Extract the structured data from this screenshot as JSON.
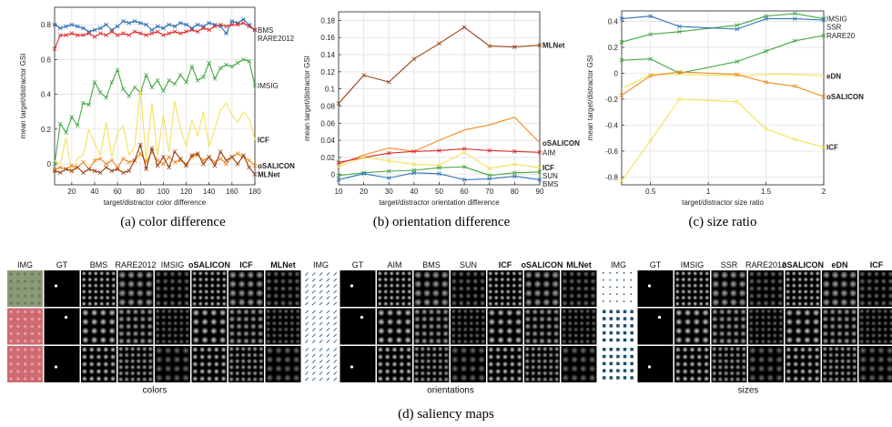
{
  "colors": {
    "BMS": "#2f74b8",
    "RARE2012": "#dd2a2a",
    "IMSIG": "#44a945",
    "ICF": "#f5e15a",
    "oSALICON": "#f08a1c",
    "MLNet": "#9c3f12",
    "AIM": "#dd2a2a",
    "SUN": "#44a945",
    "SSR": "#2f74b8",
    "RARE20": "#44a945",
    "eDN": "#f5e15a",
    "axis": "#222222",
    "grid": "#dddddd"
  },
  "chart_data": [
    {
      "type": "line",
      "caption": "(a)  color difference",
      "xlabel": "target/distractor color difference",
      "ylabel": "mean target/distractor GSI",
      "xlim": [
        5,
        180
      ],
      "ylim": [
        -0.12,
        0.9
      ],
      "grid": true,
      "xticks": [
        20,
        40,
        60,
        80,
        100,
        120,
        140,
        160,
        180
      ],
      "yticks": [
        0,
        0.2,
        0.4,
        0.6,
        0.8
      ],
      "yticklabels": [
        "0",
        "0.2",
        "0.4",
        "0.6",
        "0.8"
      ],
      "x": [
        5,
        10,
        15,
        20,
        25,
        30,
        35,
        40,
        45,
        50,
        55,
        60,
        65,
        70,
        75,
        80,
        85,
        90,
        95,
        100,
        105,
        110,
        115,
        120,
        125,
        130,
        135,
        140,
        145,
        150,
        155,
        160,
        165,
        170,
        175,
        180
      ],
      "series": [
        {
          "name": "BMS",
          "label": "BMS",
          "bold": false,
          "marker": "*",
          "values": [
            0.8,
            0.78,
            0.79,
            0.8,
            0.79,
            0.78,
            0.76,
            0.77,
            0.78,
            0.8,
            0.77,
            0.79,
            0.82,
            0.81,
            0.82,
            0.81,
            0.8,
            0.77,
            0.79,
            0.78,
            0.8,
            0.79,
            0.81,
            0.8,
            0.78,
            0.8,
            0.79,
            0.81,
            0.8,
            0.79,
            0.75,
            0.82,
            0.81,
            0.83,
            0.8,
            0.77
          ]
        },
        {
          "name": "RARE2012",
          "label": "RARE2012",
          "bold": false,
          "marker": "x",
          "values": [
            0.66,
            0.74,
            0.74,
            0.75,
            0.74,
            0.74,
            0.75,
            0.73,
            0.75,
            0.74,
            0.76,
            0.74,
            0.75,
            0.74,
            0.76,
            0.75,
            0.74,
            0.75,
            0.76,
            0.74,
            0.75,
            0.76,
            0.75,
            0.76,
            0.77,
            0.76,
            0.78,
            0.77,
            0.79,
            0.8,
            0.79,
            0.8,
            0.8,
            0.81,
            0.79,
            0.77
          ]
        },
        {
          "name": "IMSIG",
          "label": "IMSIG",
          "bold": false,
          "marker": "x",
          "values": [
            0.0,
            0.23,
            0.18,
            0.27,
            0.22,
            0.35,
            0.34,
            0.47,
            0.41,
            0.38,
            0.47,
            0.54,
            0.43,
            0.39,
            0.44,
            0.41,
            0.51,
            0.44,
            0.48,
            0.42,
            0.48,
            0.46,
            0.51,
            0.47,
            0.56,
            0.48,
            0.5,
            0.58,
            0.49,
            0.55,
            0.57,
            0.56,
            0.58,
            0.6,
            0.59,
            0.45
          ]
        },
        {
          "name": "ICF",
          "label": "ICF",
          "bold": true,
          "marker": "none",
          "values": [
            0.02,
            0.0,
            0.15,
            -0.06,
            0.03,
            0.05,
            0.2,
            0.12,
            0.05,
            0.24,
            0.04,
            0.18,
            0.22,
            0.05,
            0.1,
            0.43,
            0.02,
            0.35,
            0.05,
            0.28,
            0.07,
            0.36,
            0.2,
            0.1,
            0.25,
            0.16,
            0.3,
            0.1,
            0.2,
            0.31,
            0.35,
            0.28,
            0.24,
            0.3,
            0.26,
            0.14
          ]
        },
        {
          "name": "oSALICON",
          "label": "oSALICON",
          "bold": true,
          "marker": "x",
          "values": [
            -0.03,
            -0.02,
            -0.03,
            -0.01,
            -0.02,
            0.01,
            -0.03,
            0.02,
            0.03,
            0.0,
            0.02,
            -0.02,
            0.03,
            0.01,
            0.02,
            0.06,
            0.01,
            0.07,
            0.02,
            0.0,
            0.04,
            0.01,
            0.02,
            0.0,
            0.04,
            0.05,
            0.02,
            0.04,
            0.01,
            0.03,
            0.0,
            0.04,
            0.06,
            0.04,
            0.02,
            -0.01
          ]
        },
        {
          "name": "MLNet",
          "label": "MLNet",
          "bold": true,
          "marker": "x",
          "values": [
            -0.04,
            -0.05,
            -0.03,
            -0.04,
            -0.02,
            -0.05,
            -0.03,
            -0.04,
            -0.05,
            -0.02,
            -0.04,
            -0.03,
            -0.05,
            -0.04,
            0.02,
            0.11,
            -0.03,
            0.09,
            -0.01,
            0.04,
            -0.02,
            0.07,
            0.03,
            -0.01,
            0.05,
            0.06,
            0.0,
            0.04,
            -0.01,
            0.07,
            0.02,
            0.04,
            0.0,
            0.05,
            -0.02,
            -0.06
          ]
        }
      ]
    },
    {
      "type": "line",
      "caption": "(b)  orientation difference",
      "xlabel": "target/distractor orientation difference",
      "ylabel": "mean target/distractor GSI",
      "xlim": [
        10,
        90
      ],
      "ylim": [
        -0.012,
        0.19
      ],
      "grid": true,
      "xticks": [
        10,
        20,
        30,
        40,
        50,
        60,
        70,
        80,
        90
      ],
      "yticks": [
        0,
        0.02,
        0.04,
        0.06,
        0.08,
        0.1,
        0.12,
        0.14,
        0.16,
        0.18
      ],
      "yticklabels": [
        "0",
        "0.02",
        "0.04",
        "0.06",
        "0.08",
        "0.1",
        "0.12",
        "0.14",
        "0.16",
        "0.18"
      ],
      "x": [
        10,
        20,
        30,
        40,
        50,
        60,
        70,
        80,
        90
      ],
      "series": [
        {
          "name": "MLNet",
          "label": "MLNet",
          "bold": true,
          "marker": "x",
          "values": [
            0.083,
            0.116,
            0.108,
            0.135,
            0.153,
            0.172,
            0.15,
            0.149,
            0.151
          ]
        },
        {
          "name": "oSALICON",
          "label": "oSALICON",
          "bold": true,
          "marker": "none",
          "values": [
            0.012,
            0.023,
            0.031,
            0.027,
            0.04,
            0.052,
            0.058,
            0.067,
            0.037
          ]
        },
        {
          "name": "AIM",
          "label": "AIM",
          "bold": false,
          "marker": "x",
          "values": [
            0.014,
            0.02,
            0.025,
            0.027,
            0.028,
            0.03,
            0.028,
            0.027,
            0.026
          ]
        },
        {
          "name": "ICF",
          "label": "ICF",
          "bold": true,
          "marker": "x",
          "values": [
            0.009,
            0.02,
            0.016,
            0.012,
            0.011,
            0.026,
            0.007,
            0.012,
            0.008
          ]
        },
        {
          "name": "SUN",
          "label": "SUN",
          "bold": false,
          "marker": "x",
          "values": [
            -0.001,
            0.002,
            0.004,
            0.005,
            0.008,
            0.009,
            -0.001,
            0.002,
            0.003
          ]
        },
        {
          "name": "BMS",
          "label": "BMS",
          "bold": false,
          "marker": "x",
          "values": [
            -0.006,
            0.001,
            -0.004,
            0.002,
            0.001,
            -0.006,
            -0.005,
            -0.002,
            -0.006
          ]
        }
      ]
    },
    {
      "type": "line",
      "caption": "(c)  size ratio",
      "xlabel": "target/distractor size ratio",
      "ylabel": "mean target/distractor GSI",
      "xlim": [
        0.25,
        2
      ],
      "ylim": [
        -0.86,
        0.48
      ],
      "grid": true,
      "xticks": [
        0.5,
        1,
        1.5,
        2
      ],
      "xticklabels": [
        "0.5",
        "1",
        "1.5",
        "2"
      ],
      "yticks": [
        -0.8,
        -0.6,
        -0.4,
        -0.2,
        0,
        0.2,
        0.4
      ],
      "yticklabels": [
        "-0.8",
        "-0.6",
        "-0.4",
        "-0.2",
        "0",
        "0.2",
        "0.4"
      ],
      "x": [
        0.25,
        0.5,
        0.75,
        1.25,
        1.5,
        1.75,
        2
      ],
      "series": [
        {
          "name": "IMSIG",
          "label": "IMSIG",
          "bold": false,
          "marker": "x",
          "values": [
            0.24,
            0.3,
            0.32,
            0.37,
            0.44,
            0.46,
            0.42
          ]
        },
        {
          "name": "SSR",
          "label": "SSR",
          "bold": false,
          "marker": "x",
          "values": [
            0.42,
            0.44,
            0.36,
            0.34,
            0.42,
            0.42,
            0.41
          ]
        },
        {
          "name": "RARE20",
          "label": "RARE20",
          "bold": false,
          "marker": "x",
          "values": [
            0.1,
            0.11,
            0.0,
            0.09,
            0.17,
            0.25,
            0.29
          ]
        },
        {
          "name": "eDN",
          "label": "eDN",
          "bold": true,
          "marker": "none",
          "values": [
            -0.12,
            -0.01,
            -0.01,
            -0.02,
            -0.01,
            -0.01,
            -0.02
          ]
        },
        {
          "name": "oSALICON",
          "label": "oSALICON",
          "bold": true,
          "marker": "x",
          "values": [
            -0.17,
            -0.02,
            0.01,
            -0.01,
            -0.07,
            -0.1,
            -0.18
          ]
        },
        {
          "name": "ICF",
          "label": "ICF",
          "bold": true,
          "marker": "x",
          "values": [
            -0.83,
            -0.52,
            -0.2,
            -0.22,
            -0.43,
            -0.51,
            -0.57
          ]
        }
      ]
    }
  ],
  "saliency_maps": {
    "caption": "(d)  saliency maps",
    "groups": [
      {
        "label": "colors",
        "columns": [
          {
            "name": "IMG",
            "bold": false
          },
          {
            "name": "GT",
            "bold": false
          },
          {
            "name": "BMS",
            "bold": false
          },
          {
            "name": "RARE2012",
            "bold": false
          },
          {
            "name": "IMSIG",
            "bold": false
          },
          {
            "name": "oSALICON",
            "bold": true
          },
          {
            "name": "ICF",
            "bold": true
          },
          {
            "name": "MLNet",
            "bold": true
          }
        ]
      },
      {
        "label": "orientations",
        "columns": [
          {
            "name": "IMG",
            "bold": false
          },
          {
            "name": "GT",
            "bold": false
          },
          {
            "name": "AIM",
            "bold": false
          },
          {
            "name": "BMS",
            "bold": false
          },
          {
            "name": "SUN",
            "bold": false
          },
          {
            "name": "ICF",
            "bold": true
          },
          {
            "name": "oSALICON",
            "bold": true
          },
          {
            "name": "MLNet",
            "bold": true
          }
        ]
      },
      {
        "label": "sizes",
        "columns": [
          {
            "name": "IMG",
            "bold": false
          },
          {
            "name": "GT",
            "bold": false
          },
          {
            "name": "IMSIG",
            "bold": false
          },
          {
            "name": "SSR",
            "bold": false
          },
          {
            "name": "RARE2012",
            "bold": false
          },
          {
            "name": "oSALICON",
            "bold": true
          },
          {
            "name": "eDN",
            "bold": true
          },
          {
            "name": "ICF",
            "bold": true
          }
        ]
      }
    ]
  }
}
